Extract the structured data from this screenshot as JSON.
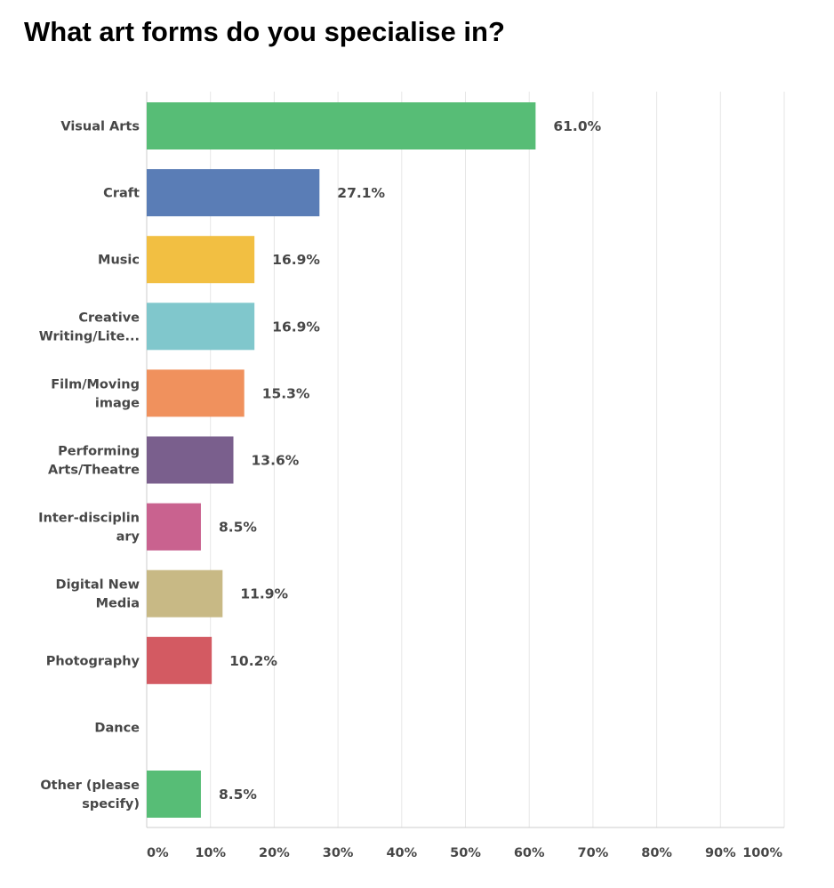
{
  "chart_data": {
    "type": "bar",
    "orientation": "horizontal",
    "title": "What art forms do you specialise in?",
    "categories": [
      "Visual Arts",
      "Craft",
      "Music",
      "Creative Writing/Lite...",
      "Film/Moving image",
      "Performing Arts/Theatre",
      "Inter-disciplin ary",
      "Digital New Media",
      "Photography",
      "Dance",
      "Other (please specify)"
    ],
    "category_lines": [
      [
        "Visual Arts"
      ],
      [
        "Craft"
      ],
      [
        "Music"
      ],
      [
        "Creative",
        "Writing/Lite..."
      ],
      [
        "Film/Moving",
        "image"
      ],
      [
        "Performing",
        "Arts/Theatre"
      ],
      [
        "Inter-disciplin",
        "ary"
      ],
      [
        "Digital New",
        "Media"
      ],
      [
        "Photography"
      ],
      [
        "Dance"
      ],
      [
        "Other (please",
        "specify)"
      ]
    ],
    "values": [
      61.0,
      27.1,
      16.9,
      16.9,
      15.3,
      13.6,
      8.5,
      11.9,
      10.2,
      0,
      8.5
    ],
    "value_labels": [
      "61.0%",
      "27.1%",
      "16.9%",
      "16.9%",
      "15.3%",
      "13.6%",
      "8.5%",
      "11.9%",
      "10.2%",
      "",
      "8.5%"
    ],
    "colors": [
      "#57bd76",
      "#5a7db6",
      "#f2bf42",
      "#80c7cc",
      "#f0915d",
      "#7a5f8d",
      "#c9628f",
      "#c8b985",
      "#d35a62",
      "#57bd76",
      "#57bd76"
    ],
    "xlim": [
      0,
      100
    ],
    "xticks": [
      0,
      10,
      20,
      30,
      40,
      50,
      60,
      70,
      80,
      90,
      100
    ],
    "xtick_labels": [
      "0%",
      "10%",
      "20%",
      "30%",
      "40%",
      "50%",
      "60%",
      "70%",
      "80%",
      "90%",
      "100%"
    ],
    "grid": true,
    "gridline_color": "#e6e6e6",
    "axis_color": "#cccccc",
    "xlabel": "",
    "ylabel": ""
  }
}
